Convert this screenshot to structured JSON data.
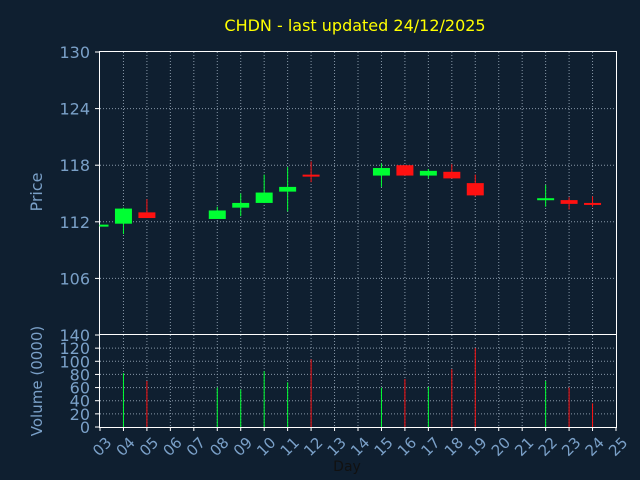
{
  "chart_data": [
    {
      "type": "candlestick",
      "title": "CHDN - last updated 24/12/2025",
      "ylabel": "Price",
      "ylim": [
        100,
        130
      ],
      "yticks": [
        106,
        112,
        118,
        124,
        130
      ],
      "x_ticks": [
        "03",
        "04",
        "05",
        "06",
        "07",
        "08",
        "09",
        "10",
        "11",
        "12",
        "13",
        "14",
        "15",
        "16",
        "17",
        "18",
        "19",
        "20",
        "21",
        "22",
        "23",
        "24",
        "25"
      ],
      "candles": [
        {
          "day": "03",
          "open": 111.5,
          "close": 111.7,
          "high": 111.7,
          "low": 111.5
        },
        {
          "day": "04",
          "open": 111.8,
          "close": 113.4,
          "high": 113.5,
          "low": 110.7
        },
        {
          "day": "05",
          "open": 113.0,
          "close": 112.4,
          "high": 114.4,
          "low": 112.4
        },
        {
          "day": "08",
          "open": 112.3,
          "close": 113.2,
          "high": 113.6,
          "low": 112.3
        },
        {
          "day": "09",
          "open": 113.5,
          "close": 114.0,
          "high": 115.0,
          "low": 112.6
        },
        {
          "day": "10",
          "open": 114.0,
          "close": 115.1,
          "high": 117.0,
          "low": 114.0
        },
        {
          "day": "11",
          "open": 115.2,
          "close": 115.7,
          "high": 117.8,
          "low": 113.1
        },
        {
          "day": "12",
          "open": 117.0,
          "close": 116.9,
          "high": 118.4,
          "low": 116.2
        },
        {
          "day": "15",
          "open": 116.9,
          "close": 117.7,
          "high": 118.2,
          "low": 115.7
        },
        {
          "day": "16",
          "open": 118.0,
          "close": 116.9,
          "high": 118.0,
          "low": 116.9
        },
        {
          "day": "17",
          "open": 116.9,
          "close": 117.4,
          "high": 117.6,
          "low": 116.6
        },
        {
          "day": "18",
          "open": 117.3,
          "close": 116.6,
          "high": 118.1,
          "low": 116.6
        },
        {
          "day": "19",
          "open": 116.1,
          "close": 114.8,
          "high": 117.0,
          "low": 114.7
        },
        {
          "day": "22",
          "open": 114.3,
          "close": 114.5,
          "high": 115.9,
          "low": 113.6
        },
        {
          "day": "23",
          "open": 114.3,
          "close": 113.9,
          "high": 114.6,
          "low": 113.3
        },
        {
          "day": "24",
          "open": 114.0,
          "close": 113.8,
          "high": 114.7,
          "low": 113.6
        }
      ],
      "up_color": "#00ff33",
      "down_color": "#ff1111",
      "grid": true
    },
    {
      "type": "bar",
      "ylabel": "Volume (0000)",
      "xlabel": "Day",
      "ylim": [
        0,
        140
      ],
      "yticks": [
        0,
        20,
        40,
        60,
        80,
        100,
        120,
        140
      ],
      "x_ticks": [
        "03",
        "04",
        "05",
        "06",
        "07",
        "08",
        "09",
        "10",
        "11",
        "12",
        "13",
        "14",
        "15",
        "16",
        "17",
        "18",
        "19",
        "20",
        "21",
        "22",
        "23",
        "24",
        "25"
      ],
      "bars": [
        {
          "day": "04",
          "value": 82,
          "direction": "up"
        },
        {
          "day": "05",
          "value": 70,
          "direction": "down"
        },
        {
          "day": "08",
          "value": 60,
          "direction": "up"
        },
        {
          "day": "09",
          "value": 57,
          "direction": "up"
        },
        {
          "day": "10",
          "value": 85,
          "direction": "up"
        },
        {
          "day": "11",
          "value": 68,
          "direction": "up"
        },
        {
          "day": "12",
          "value": 103,
          "direction": "down"
        },
        {
          "day": "15",
          "value": 60,
          "direction": "up"
        },
        {
          "day": "16",
          "value": 73,
          "direction": "down"
        },
        {
          "day": "17",
          "value": 61,
          "direction": "up"
        },
        {
          "day": "18",
          "value": 88,
          "direction": "down"
        },
        {
          "day": "19",
          "value": 120,
          "direction": "down"
        },
        {
          "day": "22",
          "value": 70,
          "direction": "up"
        },
        {
          "day": "23",
          "value": 60,
          "direction": "down"
        },
        {
          "day": "24",
          "value": 36,
          "direction": "down"
        }
      ],
      "grid": true
    }
  ],
  "colors": {
    "background": "#0f1f30",
    "axis_text": "#7aa0c8",
    "title_text": "#ffff00",
    "grid": "#8898a8"
  }
}
